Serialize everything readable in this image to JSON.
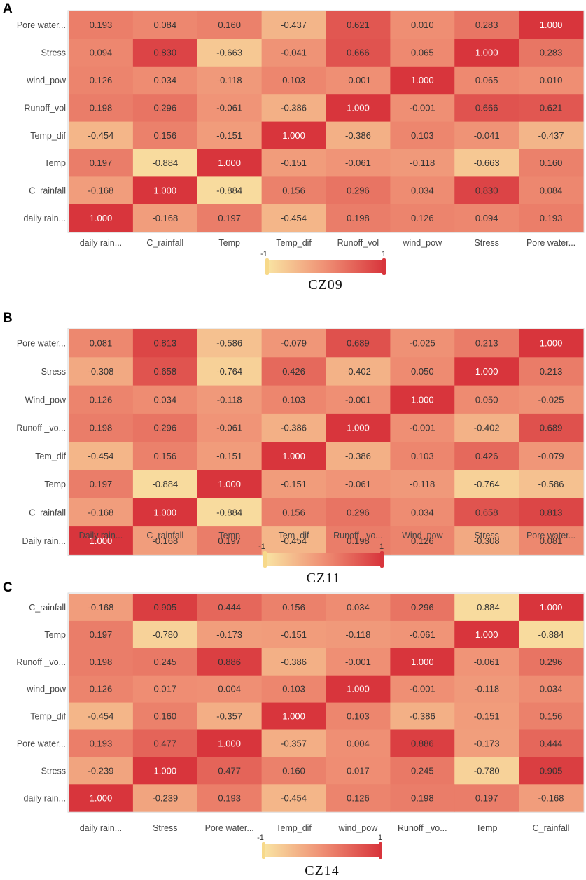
{
  "colors": {
    "low": "#f9e5a3",
    "mid": "#ef8f74",
    "high": "#d8353c",
    "frame": "#d9d9d9"
  },
  "chart_data": [
    {
      "type": "heatmap",
      "panel": "A",
      "title": "CZ09",
      "legend": {
        "min_label": "-1",
        "max_label": "1",
        "range": [
          -1,
          1
        ]
      },
      "x_labels": [
        "daily rain...",
        "C_rainfall",
        "Temp",
        "Temp_dif",
        "Runoff_vol",
        "wind_pow",
        "Stress",
        "Pore water..."
      ],
      "y_labels_top_to_bottom": [
        "Pore water...",
        "Stress",
        "wind_pow",
        "Runoff_vol",
        "Temp_dif",
        "Temp",
        "C_rainfall",
        "daily rain..."
      ],
      "values": [
        [
          "0.193",
          "0.084",
          "0.160",
          "-0.437",
          "0.621",
          "0.010",
          "0.283",
          "1.000"
        ],
        [
          "0.094",
          "0.830",
          "-0.663",
          "-0.041",
          "0.666",
          "0.065",
          "1.000",
          "0.283"
        ],
        [
          "0.126",
          "0.034",
          "-0.118",
          "0.103",
          "-0.001",
          "1.000",
          "0.065",
          "0.010"
        ],
        [
          "0.198",
          "0.296",
          "-0.061",
          "-0.386",
          "1.000",
          "-0.001",
          "0.666",
          "0.621"
        ],
        [
          "-0.454",
          "0.156",
          "-0.151",
          "1.000",
          "-0.386",
          "0.103",
          "-0.041",
          "-0.437"
        ],
        [
          "0.197",
          "-0.884",
          "1.000",
          "-0.151",
          "-0.061",
          "-0.118",
          "-0.663",
          "0.160"
        ],
        [
          "-0.168",
          "1.000",
          "-0.884",
          "0.156",
          "0.296",
          "0.034",
          "0.830",
          "0.084"
        ],
        [
          "1.000",
          "-0.168",
          "0.197",
          "-0.454",
          "0.198",
          "0.126",
          "0.094",
          "0.193"
        ]
      ]
    },
    {
      "type": "heatmap",
      "panel": "B",
      "title": "CZ11",
      "legend": {
        "min_label": "-1",
        "max_label": "1",
        "range": [
          -1,
          1
        ]
      },
      "x_labels": [
        "Daily rain...",
        "C_rainfall",
        "Temp",
        "Tem_dif",
        "Runoff _vo...",
        "Wind_pow",
        "Stress",
        "Pore water..."
      ],
      "y_labels_top_to_bottom": [
        "Pore water...",
        "Stress",
        "Wind_pow",
        "Runoff _vo...",
        "Tem_dif",
        "Temp",
        "C_rainfall",
        "Daily rain..."
      ],
      "values": [
        [
          "0.081",
          "0.813",
          "-0.586",
          "-0.079",
          "0.689",
          "-0.025",
          "0.213",
          "1.000"
        ],
        [
          "-0.308",
          "0.658",
          "-0.764",
          "0.426",
          "-0.402",
          "0.050",
          "1.000",
          "0.213"
        ],
        [
          "0.126",
          "0.034",
          "-0.118",
          "0.103",
          "-0.001",
          "1.000",
          "0.050",
          "-0.025"
        ],
        [
          "0.198",
          "0.296",
          "-0.061",
          "-0.386",
          "1.000",
          "-0.001",
          "-0.402",
          "0.689"
        ],
        [
          "-0.454",
          "0.156",
          "-0.151",
          "1.000",
          "-0.386",
          "0.103",
          "0.426",
          "-0.079"
        ],
        [
          "0.197",
          "-0.884",
          "1.000",
          "-0.151",
          "-0.061",
          "-0.118",
          "-0.764",
          "-0.586"
        ],
        [
          "-0.168",
          "1.000",
          "-0.884",
          "0.156",
          "0.296",
          "0.034",
          "0.658",
          "0.813"
        ],
        [
          "1.000",
          "-0.168",
          "0.197",
          "-0.454",
          "0.198",
          "0.126",
          "-0.308",
          "0.081"
        ]
      ]
    },
    {
      "type": "heatmap",
      "panel": "C",
      "title": "CZ14",
      "legend": {
        "min_label": "-1",
        "max_label": "1",
        "range": [
          -1,
          1
        ]
      },
      "x_labels": [
        "daily rain...",
        "Stress",
        "Pore water...",
        "Temp_dif",
        "wind_pow",
        "Runoff _vo...",
        "Temp",
        "C_rainfall"
      ],
      "y_labels_top_to_bottom": [
        "C_rainfall",
        "Temp",
        "Runoff _vo...",
        "wind_pow",
        "Temp_dif",
        "Pore water...",
        "Stress",
        "daily rain..."
      ],
      "values": [
        [
          "-0.168",
          "0.905",
          "0.444",
          "0.156",
          "0.034",
          "0.296",
          "-0.884",
          "1.000"
        ],
        [
          "0.197",
          "-0.780",
          "-0.173",
          "-0.151",
          "-0.118",
          "-0.061",
          "1.000",
          "-0.884"
        ],
        [
          "0.198",
          "0.245",
          "0.886",
          "-0.386",
          "-0.001",
          "1.000",
          "-0.061",
          "0.296"
        ],
        [
          "0.126",
          "0.017",
          "0.004",
          "0.103",
          "1.000",
          "-0.001",
          "-0.118",
          "0.034"
        ],
        [
          "-0.454",
          "0.160",
          "-0.357",
          "1.000",
          "0.103",
          "-0.386",
          "-0.151",
          "0.156"
        ],
        [
          "0.193",
          "0.477",
          "1.000",
          "-0.357",
          "0.004",
          "0.886",
          "-0.173",
          "0.444"
        ],
        [
          "-0.239",
          "1.000",
          "0.477",
          "0.160",
          "0.017",
          "0.245",
          "-0.780",
          "0.905"
        ],
        [
          "1.000",
          "-0.239",
          "0.193",
          "-0.454",
          "0.126",
          "0.198",
          "0.197",
          "-0.168"
        ]
      ]
    }
  ]
}
